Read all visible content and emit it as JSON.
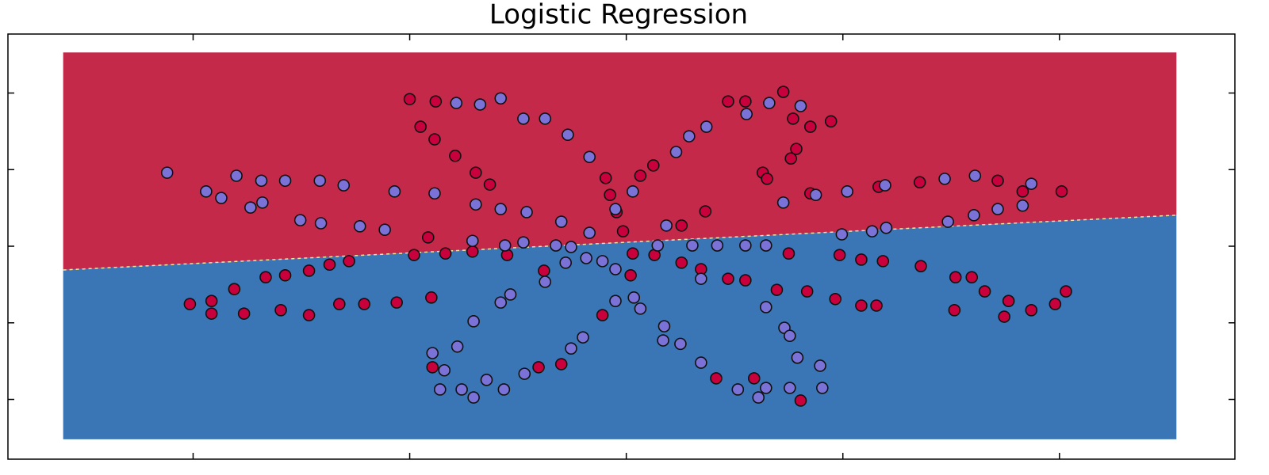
{
  "chart_data": {
    "type": "scatter",
    "title": "Logistic Regression",
    "xlim": [
      -5.71,
      5.62
    ],
    "ylim": [
      -5.56,
      5.54
    ],
    "xticks": [
      -4,
      -2,
      0,
      2,
      4
    ],
    "yticks": [
      -4,
      -2,
      0,
      2,
      4
    ],
    "mesh_xlim": [
      -5.2,
      5.08
    ],
    "mesh_ylim": [
      -5.04,
      5.06
    ],
    "decision_boundary": {
      "x": [
        -5.2,
        5.08
      ],
      "y": [
        -0.62,
        0.81
      ]
    },
    "region_colors": {
      "upper": "#c4294a",
      "lower": "#3a75b5"
    },
    "series": [
      {
        "color": "#c8003c",
        "x": [
          -2.0,
          -1.76,
          -1.9,
          -1.77,
          -1.58,
          -1.39,
          -1.26,
          -0.19,
          -0.15,
          -0.09,
          -0.03,
          0.13,
          0.25,
          0.73,
          0.51,
          0.94,
          1.1,
          1.45,
          1.54,
          1.7,
          1.89,
          1.57,
          1.52,
          1.26,
          1.3,
          3.43,
          3.66,
          4.02,
          2.71,
          2.33,
          1.7,
          -1.83,
          -1.96,
          -1.67,
          -1.42,
          -1.1,
          -3.33,
          -3.15,
          -2.93,
          -2.74,
          -2.56,
          -3.62,
          -4.03,
          -3.83,
          -3.83,
          -3.53,
          -3.19,
          -2.93,
          -2.65,
          -2.42,
          -2.12,
          -1.8,
          -0.76,
          -0.6,
          -0.81,
          -1.79,
          -0.22,
          0.04,
          0.06,
          0.26,
          0.51,
          0.69,
          0.94,
          1.1,
          1.39,
          1.67,
          1.93,
          2.17,
          2.31,
          1.5,
          1.97,
          2.17,
          2.37,
          2.72,
          3.04,
          3.19,
          3.31,
          3.53,
          3.74,
          3.49,
          3.03,
          4.06,
          3.96,
          0.83,
          1.18,
          1.61
        ],
        "values": [
          3.84,
          3.78,
          3.12,
          2.79,
          2.36,
          1.92,
          1.61,
          1.78,
          1.34,
          0.89,
          0.39,
          1.84,
          2.11,
          0.91,
          0.54,
          3.78,
          3.78,
          4.03,
          3.33,
          3.12,
          3.26,
          2.54,
          2.29,
          1.92,
          1.76,
          1.71,
          1.43,
          1.43,
          1.67,
          1.55,
          1.38,
          0.23,
          -0.23,
          -0.19,
          -0.14,
          -0.23,
          -0.81,
          -0.76,
          -0.64,
          -0.48,
          -0.39,
          -1.12,
          -1.51,
          -1.43,
          -1.76,
          -1.76,
          -1.67,
          -1.8,
          -1.51,
          -1.51,
          -1.47,
          -1.34,
          -0.64,
          -3.08,
          -3.16,
          -3.16,
          -1.8,
          -0.76,
          -0.19,
          -0.23,
          -0.43,
          -0.6,
          -0.85,
          -0.89,
          -1.14,
          -1.18,
          -1.38,
          -1.55,
          -1.55,
          -0.19,
          -0.23,
          -0.35,
          -0.39,
          -0.52,
          -0.81,
          -0.81,
          -1.18,
          -1.43,
          -1.67,
          -1.84,
          -1.67,
          -1.18,
          -1.51,
          -3.45,
          -3.45,
          -4.03
        ]
      },
      {
        "color": "#7b72d8",
        "x": [
          -4.24,
          -3.88,
          -3.6,
          -3.37,
          -3.15,
          -2.83,
          -2.61,
          -2.14,
          -3.74,
          -3.47,
          -3.36,
          -3.01,
          -2.82,
          -2.46,
          -2.23,
          -1.77,
          -1.39,
          -1.16,
          -0.92,
          -0.6,
          -0.34,
          -1.42,
          -1.12,
          -0.95,
          -0.65,
          -0.51,
          -1.57,
          -1.35,
          -1.16,
          -0.95,
          -0.75,
          -0.54,
          -0.34,
          -0.1,
          0.06,
          0.46,
          0.58,
          0.74,
          0.37,
          0.61,
          0.84,
          1.1,
          1.29,
          1.99,
          2.27,
          2.4,
          2.97,
          3.21,
          3.43,
          3.66,
          1.45,
          1.75,
          2.04,
          2.39,
          2.94,
          3.22,
          3.74,
          1.11,
          1.32,
          1.61,
          -0.22,
          -0.1,
          -0.1,
          0.07,
          0.13,
          -0.37,
          -0.56,
          -0.75,
          -1.07,
          -1.16,
          -1.41,
          -1.56,
          -1.79,
          -1.68,
          -1.72,
          -1.52,
          -1.41,
          -1.29,
          -1.13,
          -0.94,
          -0.51,
          -0.4,
          0.35,
          0.34,
          0.5,
          0.69,
          0.29,
          0.69,
          1.29,
          1.46,
          1.51,
          1.58,
          1.79,
          1.03,
          1.29,
          1.51,
          1.81,
          1.22
        ],
        "values": [
          1.92,
          1.43,
          1.84,
          1.71,
          1.71,
          1.71,
          1.59,
          1.43,
          1.26,
          1.01,
          1.14,
          0.68,
          0.6,
          0.52,
          0.43,
          1.38,
          1.09,
          0.97,
          0.89,
          0.64,
          0.35,
          0.14,
          0.02,
          0.1,
          0.02,
          -0.02,
          3.74,
          3.7,
          3.86,
          3.33,
          3.33,
          2.91,
          2.33,
          0.97,
          1.43,
          2.46,
          2.87,
          3.12,
          0.54,
          0.02,
          0.02,
          0.02,
          0.02,
          0.31,
          0.39,
          0.48,
          0.64,
          0.81,
          0.97,
          1.06,
          1.14,
          1.34,
          1.43,
          1.59,
          1.76,
          1.84,
          1.63,
          3.45,
          3.74,
          3.66,
          -0.39,
          -0.6,
          -1.43,
          -1.34,
          -1.63,
          -0.31,
          -0.43,
          -0.93,
          -1.26,
          -1.47,
          -1.96,
          -2.62,
          -2.79,
          -3.24,
          -3.74,
          -3.74,
          -3.95,
          -3.49,
          -3.74,
          -3.33,
          -2.67,
          -2.38,
          -2.09,
          -2.46,
          -2.55,
          -3.04,
          0.02,
          -0.85,
          -1.59,
          -2.13,
          -2.34,
          -2.91,
          -3.12,
          -3.74,
          -3.7,
          -3.7,
          -3.7,
          -3.95
        ]
      }
    ]
  }
}
